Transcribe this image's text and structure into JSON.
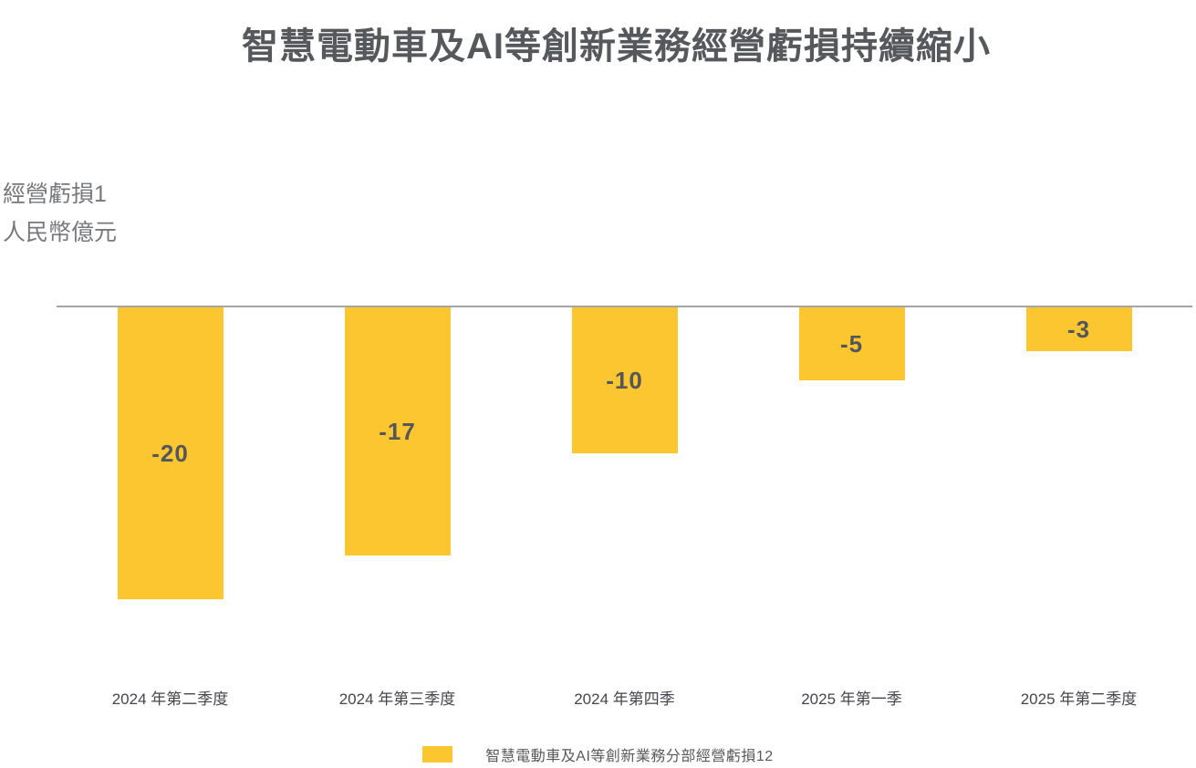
{
  "page": {
    "title": "智慧電動車及AI等創新業務經營虧損持續縮小"
  },
  "axis": {
    "ylabel_line1": "經營虧損1",
    "ylabel_line2": "人民幣億元"
  },
  "legend": {
    "label": "智慧電動車及AI等創新業務分部經營虧損12"
  },
  "style": {
    "bar_color": "#FCC630",
    "title_color": "#57585B",
    "value_label_color": "#55565A",
    "axis_line_color": "#A4A4A4",
    "category_label_color": "#45464B",
    "ylabel_color": "#77787B"
  },
  "chart_data": {
    "type": "bar",
    "title": "智慧電動車及AI等創新業務經營虧損持續縮小",
    "categories": [
      "2024 年第二季度",
      "2024 年第三季度",
      "2024 年第四季",
      "2025 年第一季",
      "2025 年第二季度"
    ],
    "values": [
      -20,
      -17,
      -10,
      -5,
      -3
    ],
    "data_labels": [
      "-20",
      "-17",
      "-10",
      "-5",
      "-3"
    ],
    "ylabel": "經營虧損1 人民幣億元",
    "ylim": [
      -22,
      0
    ],
    "grid": false,
    "bar_color": "#FCC630",
    "legend_entries": [
      "智慧電動車及AI等創新業務分部經營虧損12"
    ],
    "legend_position": "bottom"
  }
}
